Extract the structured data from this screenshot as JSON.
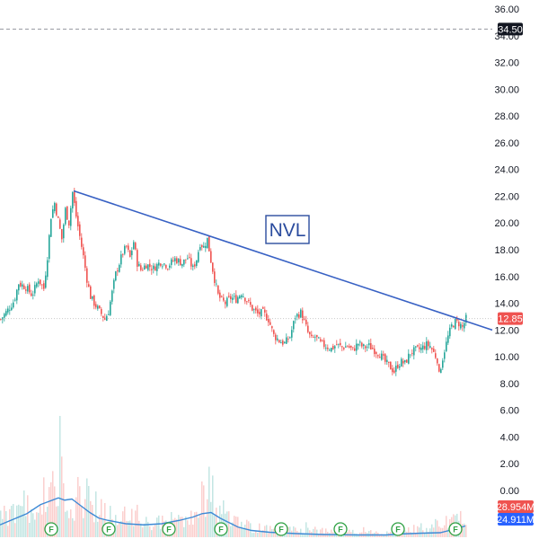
{
  "chart_data": {
    "type": "candlestick",
    "ticker": "NVL",
    "y_axis": {
      "ticks": [
        "36.00",
        "34.00",
        "32.00",
        "30.00",
        "28.00",
        "26.00",
        "24.00",
        "22.00",
        "20.00",
        "18.00",
        "16.00",
        "14.00",
        "12.00",
        "10.00",
        "8.00",
        "6.00",
        "4.00",
        "2.00",
        "0.00"
      ],
      "ylim": [
        -2.5,
        37
      ]
    },
    "price_series": [
      [
        0,
        12.8
      ],
      [
        8,
        13.5
      ],
      [
        15,
        14.2
      ],
      [
        20,
        15.5
      ],
      [
        28,
        15.2
      ],
      [
        35,
        14.6
      ],
      [
        42,
        15.8
      ],
      [
        48,
        15.1
      ],
      [
        52,
        17.5
      ],
      [
        56,
        20.5
      ],
      [
        60,
        21.5
      ],
      [
        64,
        20.2
      ],
      [
        68,
        18.8
      ],
      [
        72,
        21.0
      ],
      [
        76,
        20.0
      ],
      [
        80,
        22.3
      ],
      [
        84,
        20.5
      ],
      [
        88,
        19.0
      ],
      [
        92,
        17.5
      ],
      [
        96,
        15.8
      ],
      [
        100,
        14.5
      ],
      [
        104,
        14.0
      ],
      [
        108,
        13.6
      ],
      [
        112,
        13.2
      ],
      [
        116,
        12.8
      ],
      [
        120,
        13.4
      ],
      [
        124,
        14.8
      ],
      [
        128,
        16.2
      ],
      [
        132,
        17.0
      ],
      [
        136,
        17.8
      ],
      [
        140,
        18.2
      ],
      [
        144,
        17.4
      ],
      [
        148,
        18.6
      ],
      [
        152,
        17.0
      ],
      [
        156,
        16.5
      ],
      [
        162,
        16.9
      ],
      [
        170,
        16.6
      ],
      [
        178,
        17.1
      ],
      [
        186,
        16.8
      ],
      [
        194,
        17.3
      ],
      [
        202,
        17.0
      ],
      [
        208,
        17.4
      ],
      [
        214,
        16.6
      ],
      [
        218,
        17.3
      ],
      [
        222,
        18.5
      ],
      [
        226,
        18.2
      ],
      [
        230,
        18.8
      ],
      [
        234,
        17.2
      ],
      [
        238,
        15.8
      ],
      [
        242,
        14.6
      ],
      [
        246,
        14.2
      ],
      [
        250,
        14.0
      ],
      [
        256,
        14.4
      ],
      [
        262,
        14.3
      ],
      [
        268,
        14.8
      ],
      [
        274,
        14.2
      ],
      [
        280,
        13.6
      ],
      [
        286,
        13.2
      ],
      [
        292,
        13.3
      ],
      [
        298,
        12.8
      ],
      [
        304,
        11.6
      ],
      [
        310,
        11.2
      ],
      [
        316,
        11.0
      ],
      [
        322,
        11.5
      ],
      [
        328,
        13.0
      ],
      [
        334,
        13.3
      ],
      [
        338,
        12.6
      ],
      [
        342,
        11.8
      ],
      [
        346,
        11.3
      ],
      [
        350,
        11.5
      ],
      [
        356,
        11.0
      ],
      [
        362,
        10.8
      ],
      [
        368,
        10.6
      ],
      [
        374,
        10.9
      ],
      [
        380,
        10.7
      ],
      [
        386,
        10.8
      ],
      [
        392,
        10.5
      ],
      [
        398,
        11.0
      ],
      [
        404,
        10.7
      ],
      [
        410,
        10.8
      ],
      [
        416,
        10.5
      ],
      [
        422,
        10.2
      ],
      [
        428,
        9.6
      ],
      [
        434,
        9.2
      ],
      [
        438,
        8.9
      ],
      [
        442,
        9.4
      ],
      [
        446,
        9.6
      ],
      [
        450,
        9.5
      ],
      [
        456,
        10.3
      ],
      [
        462,
        10.5
      ],
      [
        468,
        10.6
      ],
      [
        474,
        10.9
      ],
      [
        478,
        10.8
      ],
      [
        482,
        10.3
      ],
      [
        486,
        9.8
      ],
      [
        488,
        8.6
      ],
      [
        490,
        9.3
      ],
      [
        494,
        10.5
      ],
      [
        498,
        11.5
      ],
      [
        502,
        12.3
      ],
      [
        506,
        12.6
      ],
      [
        510,
        12.5
      ],
      [
        514,
        12.2
      ],
      [
        518,
        12.85
      ]
    ],
    "volume_series": [
      [
        0,
        0.55
      ],
      [
        20,
        0.8
      ],
      [
        40,
        0.9
      ],
      [
        55,
        1.2
      ],
      [
        70,
        1.55
      ],
      [
        85,
        1.1
      ],
      [
        100,
        1.2
      ],
      [
        112,
        0.7
      ],
      [
        130,
        0.5
      ],
      [
        150,
        0.6
      ],
      [
        170,
        0.35
      ],
      [
        185,
        0.45
      ],
      [
        200,
        0.5
      ],
      [
        215,
        0.55
      ],
      [
        230,
        1.35
      ],
      [
        245,
        0.75
      ],
      [
        260,
        0.45
      ],
      [
        275,
        0.3
      ],
      [
        290,
        0.25
      ],
      [
        310,
        0.2
      ],
      [
        340,
        0.2
      ],
      [
        370,
        0.15
      ],
      [
        400,
        0.15
      ],
      [
        430,
        0.12
      ],
      [
        450,
        0.2
      ],
      [
        470,
        0.25
      ],
      [
        490,
        0.35
      ],
      [
        505,
        0.5
      ],
      [
        518,
        0.65
      ]
    ],
    "vol_ma_line": [
      [
        0,
        0.55
      ],
      [
        15,
        0.8
      ],
      [
        30,
        1.05
      ],
      [
        45,
        1.45
      ],
      [
        55,
        1.6
      ],
      [
        65,
        1.75
      ],
      [
        72,
        1.65
      ],
      [
        80,
        1.7
      ],
      [
        90,
        1.4
      ],
      [
        100,
        1.1
      ],
      [
        110,
        0.85
      ],
      [
        120,
        0.75
      ],
      [
        140,
        0.6
      ],
      [
        160,
        0.55
      ],
      [
        180,
        0.6
      ],
      [
        200,
        0.75
      ],
      [
        215,
        0.9
      ],
      [
        225,
        1.05
      ],
      [
        235,
        1.1
      ],
      [
        245,
        0.85
      ],
      [
        255,
        0.65
      ],
      [
        265,
        0.45
      ],
      [
        280,
        0.3
      ],
      [
        300,
        0.22
      ],
      [
        330,
        0.16
      ],
      [
        360,
        0.12
      ],
      [
        400,
        0.1
      ],
      [
        430,
        0.1
      ],
      [
        450,
        0.15
      ],
      [
        470,
        0.18
      ],
      [
        490,
        0.2
      ],
      [
        505,
        0.35
      ],
      [
        518,
        0.5
      ]
    ],
    "trendline": {
      "from": [
        82,
        22.4
      ],
      "to": [
        548,
        12.0
      ]
    },
    "dashed_level": 34.5,
    "price_badges": [
      {
        "value": "34.50",
        "y": 34.5,
        "bg": "#131722",
        "fg": "#ffffff"
      },
      {
        "value": "12.85",
        "y": 12.85,
        "bg": "#ef5350",
        "fg": "#ffffff"
      }
    ],
    "volume_badges": [
      {
        "value": "28.954M",
        "bg": "#ef5350",
        "fg": "#ffffff"
      },
      {
        "value": "24.911M",
        "bg": "#2962ff",
        "fg": "#ffffff"
      }
    ],
    "earnings_markers": {
      "label": "F",
      "x": [
        57,
        121,
        188,
        246,
        313,
        379,
        443,
        507
      ]
    },
    "colors": {
      "up": "#26a69a",
      "down": "#ef5350",
      "trendline": "#3861c4",
      "vol_ma": "#3d8ad6",
      "ticker_box": "#2b4c9e",
      "earnings": "#2ea043"
    }
  }
}
